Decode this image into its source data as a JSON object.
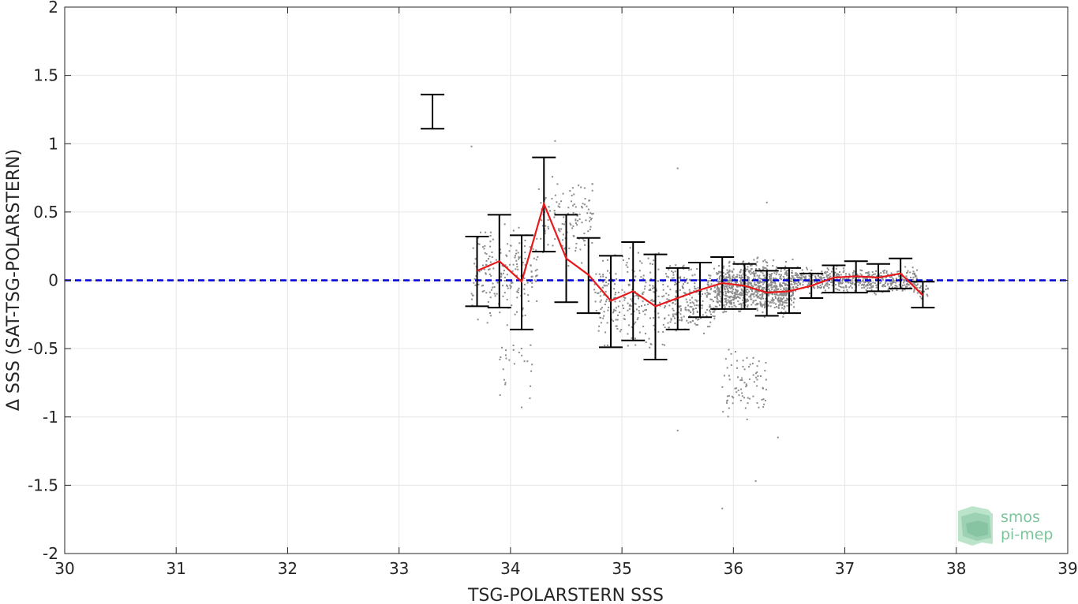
{
  "chart_data": {
    "type": "scatter",
    "xlabel": "TSG-POLARSTERN SSS",
    "ylabel": "Δ SSS (SAT-TSG-POLARSTERN)",
    "xlim": [
      30,
      39
    ],
    "ylim": [
      -2,
      2
    ],
    "x_ticks": [
      "30",
      "31",
      "32",
      "33",
      "34",
      "35",
      "36",
      "37",
      "38",
      "39"
    ],
    "y_ticks": [
      "2",
      "1.5",
      "1",
      "0.5",
      "0",
      "-0.5",
      "-1",
      "-1.5",
      "-2"
    ],
    "grid": true,
    "reference_line": {
      "y": 0,
      "color": "#0000d4",
      "style": "dashed"
    },
    "series": [
      {
        "kind": "binned-mean-line",
        "color": "#e8191b",
        "x": [
          33.7,
          33.9,
          34.1,
          34.3,
          34.5,
          34.7,
          34.9,
          35.1,
          35.3,
          35.5,
          35.7,
          35.9,
          36.1,
          36.3,
          36.5,
          36.7,
          36.9,
          37.1,
          37.3,
          37.5,
          37.7
        ],
        "y": [
          0.07,
          0.14,
          -0.01,
          0.56,
          0.16,
          0.04,
          -0.15,
          -0.08,
          -0.19,
          -0.13,
          -0.07,
          -0.02,
          -0.04,
          -0.09,
          -0.08,
          -0.04,
          0.02,
          0.03,
          0.02,
          0.05,
          -0.11
        ]
      },
      {
        "kind": "error-bars",
        "color": "#000000",
        "x": [
          33.7,
          33.9,
          34.1,
          34.3,
          34.5,
          34.7,
          34.9,
          35.1,
          35.3,
          35.5,
          35.7,
          35.9,
          36.1,
          36.3,
          36.5,
          36.7,
          36.9,
          37.1,
          37.3,
          37.5,
          37.7
        ],
        "low": [
          -0.19,
          -0.2,
          -0.36,
          0.21,
          -0.16,
          -0.24,
          -0.49,
          -0.44,
          -0.58,
          -0.36,
          -0.27,
          -0.21,
          -0.21,
          -0.26,
          -0.24,
          -0.13,
          -0.09,
          -0.09,
          -0.08,
          -0.06,
          -0.2
        ],
        "high": [
          0.32,
          0.48,
          0.33,
          0.9,
          0.48,
          0.31,
          0.18,
          0.28,
          0.19,
          0.09,
          0.13,
          0.17,
          0.12,
          0.07,
          0.09,
          0.05,
          0.11,
          0.14,
          0.12,
          0.16,
          -0.01
        ]
      },
      {
        "kind": "error-bars",
        "color": "#000000",
        "x": [
          33.3
        ],
        "low": [
          1.11
        ],
        "high": [
          1.36
        ]
      },
      {
        "kind": "scatter-points",
        "color": "#8c8c8c",
        "clusters": [
          {
            "x_range": [
              33.65,
              34.25
            ],
            "y_center": 0.05,
            "y_spread": 0.45,
            "count": 200
          },
          {
            "x_range": [
              33.9,
              34.2
            ],
            "y_center": -0.6,
            "y_spread": 0.35,
            "count": 25
          },
          {
            "x_range": [
              34.25,
              34.75
            ],
            "y_center": 0.45,
            "y_spread": 0.4,
            "count": 130
          },
          {
            "x_range": [
              34.75,
              35.45
            ],
            "y_center": -0.15,
            "y_spread": 0.45,
            "count": 260
          },
          {
            "x_range": [
              35.45,
              35.85
            ],
            "y_center": -0.15,
            "y_spread": 0.35,
            "count": 220
          },
          {
            "x_range": [
              35.85,
              36.55
            ],
            "y_center": -0.05,
            "y_spread": 0.25,
            "count": 900
          },
          {
            "x_range": [
              35.9,
              36.3
            ],
            "y_center": -0.75,
            "y_spread": 0.35,
            "count": 80
          },
          {
            "x_range": [
              36.55,
              37.65
            ],
            "y_center": 0.0,
            "y_spread": 0.12,
            "count": 550
          },
          {
            "x_range": [
              37.65,
              37.75
            ],
            "y_center": -0.08,
            "y_spread": 0.1,
            "count": 20
          }
        ],
        "outliers": [
          {
            "x": 35.9,
            "y": -1.67
          },
          {
            "x": 36.2,
            "y": -1.47
          },
          {
            "x": 36.4,
            "y": -1.15
          },
          {
            "x": 34.1,
            "y": -0.93
          },
          {
            "x": 35.5,
            "y": -1.1
          },
          {
            "x": 33.65,
            "y": 0.98
          },
          {
            "x": 34.4,
            "y": 1.02
          },
          {
            "x": 35.5,
            "y": 0.82
          },
          {
            "x": 36.3,
            "y": 0.57
          }
        ]
      }
    ]
  },
  "logo": {
    "line1": "smos",
    "line2": "pi-mep"
  }
}
